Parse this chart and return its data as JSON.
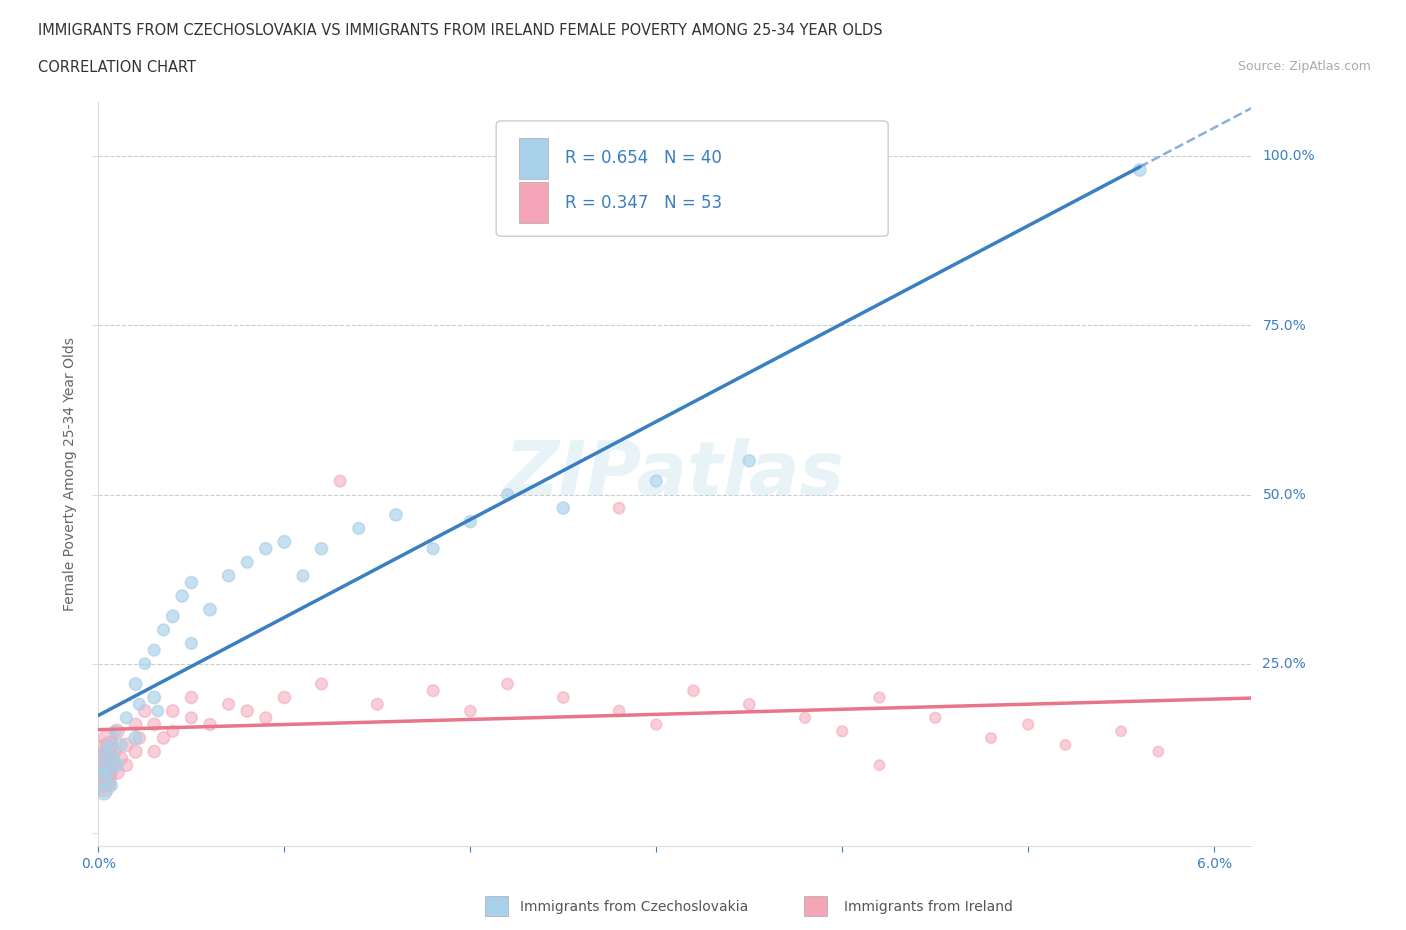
{
  "title_line1": "IMMIGRANTS FROM CZECHOSLOVAKIA VS IMMIGRANTS FROM IRELAND FEMALE POVERTY AMONG 25-34 YEAR OLDS",
  "title_line2": "CORRELATION CHART",
  "source_text": "Source: ZipAtlas.com",
  "ylabel": "Female Poverty Among 25-34 Year Olds",
  "xlim": [
    0.0,
    0.062
  ],
  "ylim": [
    -0.02,
    1.08
  ],
  "xticks": [
    0.0,
    0.01,
    0.02,
    0.03,
    0.04,
    0.05,
    0.06
  ],
  "xticklabels": [
    "0.0%",
    "",
    "",
    "",
    "",
    "",
    "6.0%"
  ],
  "yticks": [
    0.0,
    0.25,
    0.5,
    0.75,
    1.0
  ],
  "yticklabels": [
    "",
    "25.0%",
    "50.0%",
    "75.0%",
    "100.0%"
  ],
  "r_czech": 0.654,
  "n_czech": 40,
  "r_ireland": 0.347,
  "n_ireland": 53,
  "color_czech": "#a8d0e8",
  "color_ireland": "#f4a6b8",
  "line_czech": "#3a7fc1",
  "line_ireland": "#e8758a",
  "czech_x": [
    0.0001,
    0.0002,
    0.0003,
    0.0004,
    0.0005,
    0.0006,
    0.0007,
    0.0008,
    0.0009,
    0.001,
    0.0012,
    0.0015,
    0.002,
    0.002,
    0.0022,
    0.0025,
    0.003,
    0.003,
    0.0032,
    0.0035,
    0.004,
    0.0045,
    0.005,
    0.005,
    0.006,
    0.007,
    0.008,
    0.009,
    0.01,
    0.011,
    0.012,
    0.014,
    0.016,
    0.018,
    0.02,
    0.022,
    0.025,
    0.03,
    0.035,
    0.056
  ],
  "czech_y": [
    0.08,
    0.1,
    0.06,
    0.12,
    0.09,
    0.13,
    0.07,
    0.11,
    0.15,
    0.1,
    0.13,
    0.17,
    0.14,
    0.22,
    0.19,
    0.25,
    0.2,
    0.27,
    0.18,
    0.3,
    0.32,
    0.35,
    0.28,
    0.37,
    0.33,
    0.38,
    0.4,
    0.42,
    0.43,
    0.38,
    0.42,
    0.45,
    0.47,
    0.42,
    0.46,
    0.5,
    0.48,
    0.52,
    0.55,
    0.98
  ],
  "czech_size": [
    200,
    150,
    120,
    100,
    90,
    80,
    70,
    80,
    70,
    90,
    80,
    70,
    90,
    80,
    70,
    65,
    80,
    70,
    65,
    70,
    80,
    75,
    70,
    75,
    80,
    75,
    70,
    75,
    80,
    70,
    75,
    70,
    75,
    70,
    75,
    70,
    75,
    70,
    75,
    80
  ],
  "ireland_x": [
    0.0001,
    0.0002,
    0.0003,
    0.0003,
    0.0004,
    0.0005,
    0.0005,
    0.0006,
    0.0007,
    0.0008,
    0.001,
    0.001,
    0.0012,
    0.0015,
    0.0015,
    0.002,
    0.002,
    0.0022,
    0.0025,
    0.003,
    0.003,
    0.0035,
    0.004,
    0.004,
    0.005,
    0.005,
    0.006,
    0.007,
    0.008,
    0.009,
    0.01,
    0.012,
    0.015,
    0.018,
    0.02,
    0.022,
    0.025,
    0.028,
    0.03,
    0.032,
    0.035,
    0.038,
    0.04,
    0.042,
    0.045,
    0.048,
    0.05,
    0.052,
    0.055,
    0.057,
    0.013,
    0.028,
    0.042
  ],
  "ireland_y": [
    0.1,
    0.08,
    0.12,
    0.07,
    0.11,
    0.09,
    0.14,
    0.13,
    0.1,
    0.12,
    0.09,
    0.15,
    0.11,
    0.13,
    0.1,
    0.12,
    0.16,
    0.14,
    0.18,
    0.12,
    0.16,
    0.14,
    0.18,
    0.15,
    0.2,
    0.17,
    0.16,
    0.19,
    0.18,
    0.17,
    0.2,
    0.22,
    0.19,
    0.21,
    0.18,
    0.22,
    0.2,
    0.18,
    0.16,
    0.21,
    0.19,
    0.17,
    0.15,
    0.2,
    0.17,
    0.14,
    0.16,
    0.13,
    0.15,
    0.12,
    0.52,
    0.48,
    0.1
  ],
  "ireland_size": [
    600,
    400,
    300,
    250,
    200,
    180,
    160,
    150,
    130,
    120,
    110,
    100,
    90,
    90,
    80,
    85,
    80,
    75,
    80,
    75,
    80,
    75,
    80,
    70,
    75,
    70,
    75,
    70,
    75,
    70,
    75,
    70,
    70,
    70,
    65,
    65,
    65,
    65,
    60,
    65,
    65,
    60,
    60,
    60,
    60,
    55,
    60,
    55,
    55,
    55,
    70,
    65,
    55
  ]
}
